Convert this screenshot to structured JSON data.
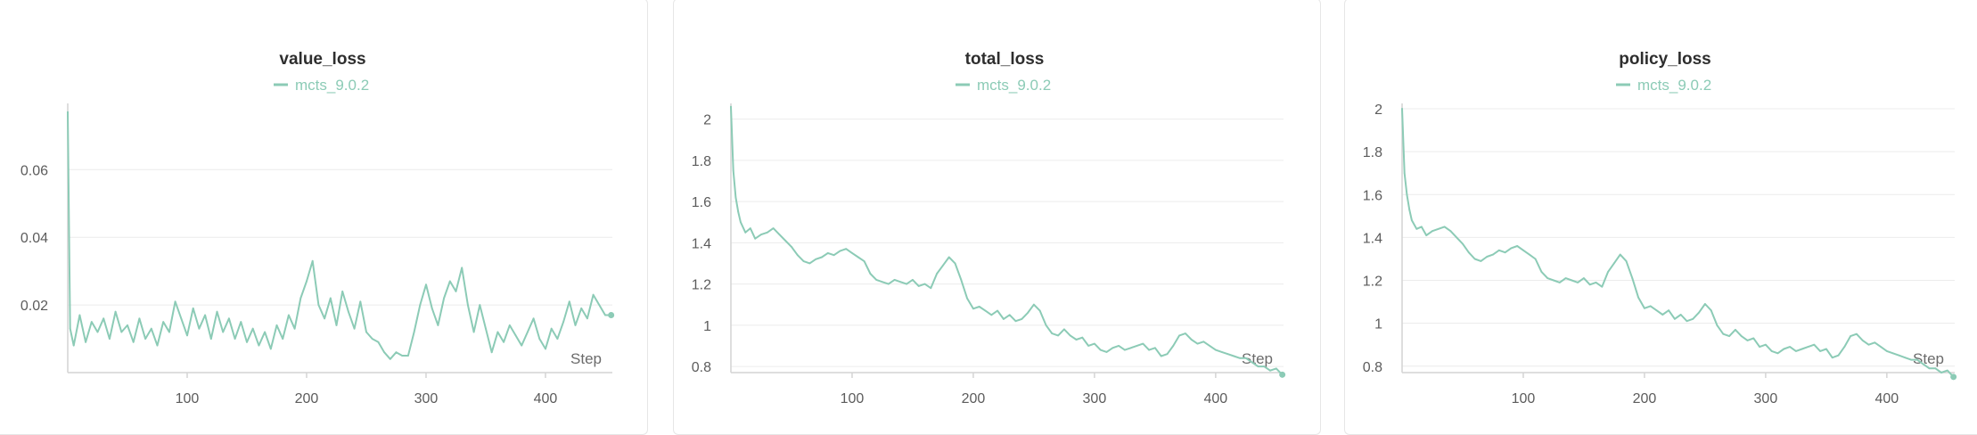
{
  "charts": {
    "panels": [
      {
        "title": "value_loss"
      },
      {
        "title": "total_loss"
      },
      {
        "title": "policy_loss"
      }
    ]
  },
  "colors": {
    "series": "#8ccbb6",
    "grid": "#ececec",
    "axis": "#d4d4d4"
  },
  "chart_data": [
    {
      "type": "line",
      "title": "value_loss",
      "xlabel": "Step",
      "ylabel": "",
      "xlim": [
        0,
        456
      ],
      "ylim": [
        0.0,
        0.078
      ],
      "xticks": [
        100,
        200,
        300,
        400
      ],
      "yticks": [
        0.02,
        0.04,
        0.06
      ],
      "ytick_labels": [
        "0.02",
        "0.04",
        "0.06"
      ],
      "grid": true,
      "legend_position": "top-center",
      "series": [
        {
          "name": "mcts_9.0.2",
          "x": [
            0,
            2,
            5,
            10,
            15,
            20,
            25,
            30,
            35,
            40,
            45,
            50,
            55,
            60,
            65,
            70,
            75,
            80,
            85,
            90,
            95,
            100,
            105,
            110,
            115,
            120,
            125,
            130,
            135,
            140,
            145,
            150,
            155,
            160,
            165,
            170,
            175,
            180,
            185,
            190,
            195,
            200,
            205,
            210,
            215,
            220,
            225,
            230,
            235,
            240,
            245,
            250,
            255,
            260,
            265,
            270,
            275,
            280,
            285,
            290,
            295,
            300,
            305,
            310,
            315,
            320,
            325,
            330,
            335,
            340,
            345,
            350,
            355,
            360,
            365,
            370,
            375,
            380,
            385,
            390,
            395,
            400,
            405,
            410,
            415,
            420,
            425,
            430,
            435,
            440,
            445,
            450,
            455
          ],
          "y": [
            0.077,
            0.013,
            0.008,
            0.017,
            0.009,
            0.015,
            0.012,
            0.016,
            0.01,
            0.018,
            0.012,
            0.014,
            0.009,
            0.016,
            0.01,
            0.013,
            0.008,
            0.015,
            0.012,
            0.021,
            0.016,
            0.011,
            0.019,
            0.013,
            0.017,
            0.01,
            0.018,
            0.012,
            0.016,
            0.01,
            0.015,
            0.009,
            0.013,
            0.008,
            0.012,
            0.007,
            0.014,
            0.01,
            0.017,
            0.013,
            0.022,
            0.027,
            0.033,
            0.02,
            0.016,
            0.022,
            0.014,
            0.024,
            0.018,
            0.013,
            0.021,
            0.012,
            0.01,
            0.009,
            0.006,
            0.004,
            0.006,
            0.005,
            0.005,
            0.012,
            0.02,
            0.026,
            0.019,
            0.014,
            0.022,
            0.027,
            0.024,
            0.031,
            0.02,
            0.012,
            0.02,
            0.013,
            0.006,
            0.012,
            0.009,
            0.014,
            0.011,
            0.008,
            0.012,
            0.016,
            0.01,
            0.007,
            0.013,
            0.01,
            0.015,
            0.021,
            0.014,
            0.019,
            0.016,
            0.023,
            0.02,
            0.017,
            0.017
          ]
        }
      ]
    },
    {
      "type": "line",
      "title": "total_loss",
      "xlabel": "Step",
      "ylabel": "",
      "xlim": [
        0,
        456
      ],
      "ylim": [
        0.77,
        2.05
      ],
      "xticks": [
        100,
        200,
        300,
        400
      ],
      "yticks": [
        0.8,
        1,
        1.2,
        1.4,
        1.6,
        1.8,
        2
      ],
      "ytick_labels": [
        "0.8",
        "1",
        "1.2",
        "1.4",
        "1.6",
        "1.8",
        "2"
      ],
      "grid": true,
      "legend_position": "top-center",
      "series": [
        {
          "name": "mcts_9.0.2",
          "x": [
            0,
            2,
            4,
            6,
            8,
            12,
            16,
            20,
            25,
            30,
            35,
            40,
            45,
            50,
            55,
            60,
            65,
            70,
            75,
            80,
            85,
            90,
            95,
            100,
            105,
            110,
            115,
            120,
            125,
            130,
            135,
            140,
            145,
            150,
            155,
            160,
            165,
            170,
            175,
            180,
            185,
            190,
            195,
            200,
            205,
            210,
            215,
            220,
            225,
            230,
            235,
            240,
            245,
            250,
            255,
            260,
            265,
            270,
            275,
            280,
            285,
            290,
            295,
            300,
            305,
            310,
            315,
            320,
            325,
            330,
            335,
            340,
            345,
            350,
            355,
            360,
            365,
            370,
            375,
            380,
            385,
            390,
            395,
            400,
            405,
            410,
            415,
            420,
            425,
            430,
            435,
            440,
            445,
            450,
            455
          ],
          "y": [
            2.06,
            1.75,
            1.62,
            1.55,
            1.5,
            1.45,
            1.47,
            1.42,
            1.44,
            1.45,
            1.47,
            1.44,
            1.41,
            1.38,
            1.34,
            1.31,
            1.3,
            1.32,
            1.33,
            1.35,
            1.34,
            1.36,
            1.37,
            1.35,
            1.33,
            1.31,
            1.25,
            1.22,
            1.21,
            1.2,
            1.22,
            1.21,
            1.2,
            1.22,
            1.19,
            1.2,
            1.18,
            1.25,
            1.29,
            1.33,
            1.3,
            1.22,
            1.13,
            1.08,
            1.09,
            1.07,
            1.05,
            1.07,
            1.03,
            1.05,
            1.02,
            1.03,
            1.06,
            1.1,
            1.07,
            1.0,
            0.96,
            0.95,
            0.98,
            0.95,
            0.93,
            0.94,
            0.9,
            0.91,
            0.88,
            0.87,
            0.89,
            0.9,
            0.88,
            0.89,
            0.9,
            0.91,
            0.88,
            0.89,
            0.85,
            0.86,
            0.9,
            0.95,
            0.96,
            0.93,
            0.91,
            0.92,
            0.9,
            0.88,
            0.87,
            0.86,
            0.85,
            0.84,
            0.84,
            0.82,
            0.8,
            0.8,
            0.78,
            0.79,
            0.76
          ]
        }
      ]
    },
    {
      "type": "line",
      "title": "policy_loss",
      "xlabel": "Step",
      "ylabel": "",
      "xlim": [
        0,
        456
      ],
      "ylim": [
        0.77,
        2.0
      ],
      "xticks": [
        100,
        200,
        300,
        400
      ],
      "yticks": [
        0.8,
        1,
        1.2,
        1.4,
        1.6,
        1.8,
        2
      ],
      "ytick_labels": [
        "0.8",
        "1",
        "1.2",
        "1.4",
        "1.6",
        "1.8",
        "2"
      ],
      "grid": true,
      "legend_position": "top-center",
      "series": [
        {
          "name": "mcts_9.0.2",
          "x": [
            0,
            2,
            4,
            6,
            8,
            12,
            16,
            20,
            25,
            30,
            35,
            40,
            45,
            50,
            55,
            60,
            65,
            70,
            75,
            80,
            85,
            90,
            95,
            100,
            105,
            110,
            115,
            120,
            125,
            130,
            135,
            140,
            145,
            150,
            155,
            160,
            165,
            170,
            175,
            180,
            185,
            190,
            195,
            200,
            205,
            210,
            215,
            220,
            225,
            230,
            235,
            240,
            245,
            250,
            255,
            260,
            265,
            270,
            275,
            280,
            285,
            290,
            295,
            300,
            305,
            310,
            315,
            320,
            325,
            330,
            335,
            340,
            345,
            350,
            355,
            360,
            365,
            370,
            375,
            380,
            385,
            390,
            395,
            400,
            405,
            410,
            415,
            420,
            425,
            430,
            435,
            440,
            445,
            450,
            455
          ],
          "y": [
            2.0,
            1.7,
            1.6,
            1.53,
            1.48,
            1.44,
            1.45,
            1.41,
            1.43,
            1.44,
            1.45,
            1.43,
            1.4,
            1.37,
            1.33,
            1.3,
            1.29,
            1.31,
            1.32,
            1.34,
            1.33,
            1.35,
            1.36,
            1.34,
            1.32,
            1.3,
            1.24,
            1.21,
            1.2,
            1.19,
            1.21,
            1.2,
            1.19,
            1.21,
            1.18,
            1.19,
            1.17,
            1.24,
            1.28,
            1.32,
            1.29,
            1.21,
            1.12,
            1.07,
            1.08,
            1.06,
            1.04,
            1.06,
            1.02,
            1.04,
            1.01,
            1.02,
            1.05,
            1.09,
            1.06,
            0.99,
            0.95,
            0.94,
            0.97,
            0.94,
            0.92,
            0.93,
            0.89,
            0.9,
            0.87,
            0.86,
            0.88,
            0.89,
            0.87,
            0.88,
            0.89,
            0.9,
            0.87,
            0.88,
            0.84,
            0.85,
            0.89,
            0.94,
            0.95,
            0.92,
            0.9,
            0.91,
            0.89,
            0.87,
            0.86,
            0.85,
            0.84,
            0.83,
            0.83,
            0.81,
            0.79,
            0.79,
            0.77,
            0.78,
            0.75
          ]
        }
      ]
    }
  ]
}
